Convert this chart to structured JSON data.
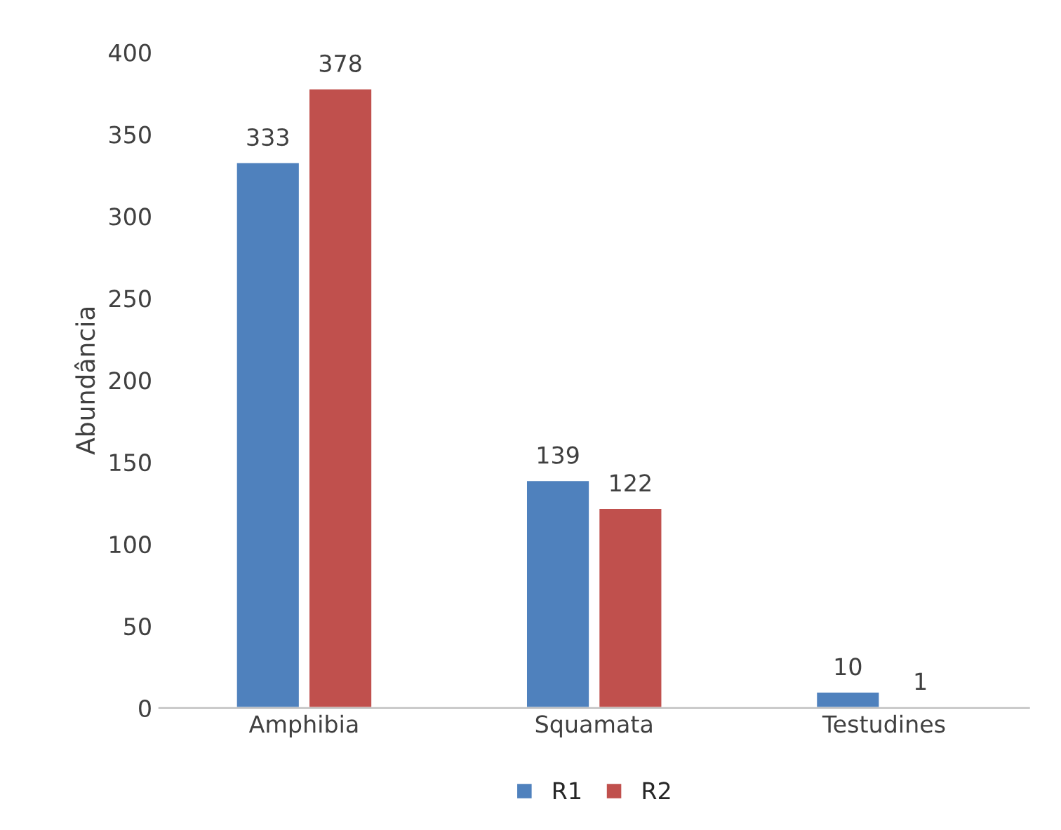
{
  "chart_data": {
    "type": "bar",
    "ylabel": "Abundância",
    "categories": [
      "Amphibia",
      "Squamata",
      "Testudines"
    ],
    "series": [
      {
        "name": "R1",
        "color": "#4f81bd",
        "values": [
          333,
          139,
          10
        ]
      },
      {
        "name": "R2",
        "color": "#c0504d",
        "values": [
          378,
          122,
          1
        ]
      }
    ],
    "ylim": [
      0,
      400
    ],
    "yticks": [
      0,
      50,
      100,
      150,
      200,
      250,
      300,
      350,
      400
    ],
    "grid": false,
    "legend": "bottom",
    "data_labels": true
  }
}
